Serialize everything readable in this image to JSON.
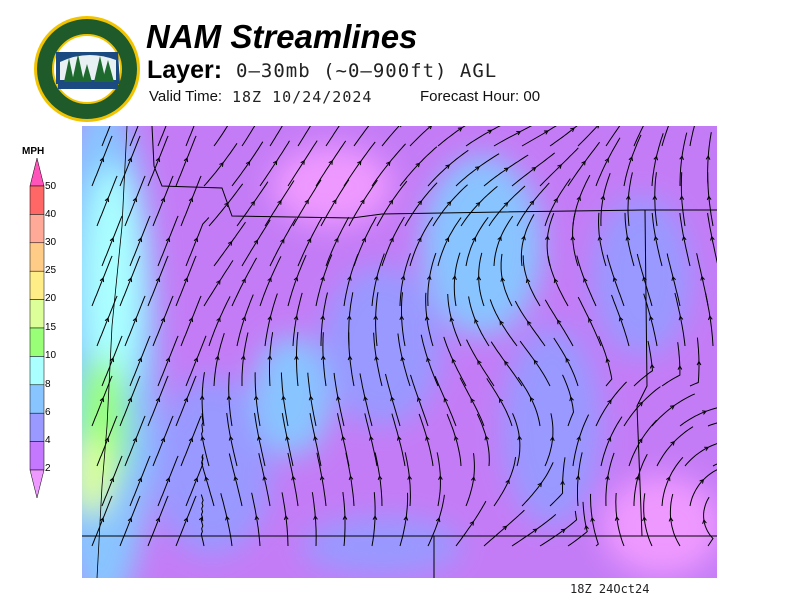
{
  "header": {
    "logo_text": [
      "OREGON",
      "DEPARTMENT OF FORESTRY"
    ],
    "title": "NAM Streamlines",
    "layer_label": "Layer:",
    "layer_value": "0–30mb (~0–900ft) AGL",
    "valid_label": "Valid Time:",
    "valid_value": "18Z 10/24/2024",
    "forecast_hour_label": "Forecast Hour: 00"
  },
  "legend": {
    "unit": "MPH",
    "ticks": [
      "50",
      "40",
      "30",
      "25",
      "20",
      "15",
      "10",
      "8",
      "6",
      "4",
      "2"
    ],
    "colors": {
      "above_50": "#ff55bb",
      "40_50": "#ff6666",
      "30_40": "#ffaa99",
      "25_30": "#ffcc88",
      "20_25": "#ffee88",
      "15_20": "#ddff99",
      "10_15": "#99ff77",
      "8_10": "#aaffff",
      "6_8": "#88c4ff",
      "4_6": "#9999ff",
      "2_4": "#c477ff",
      "below_2": "#ee99ff"
    }
  },
  "footer": {
    "timestamp": "18Z 24Oct24"
  }
}
